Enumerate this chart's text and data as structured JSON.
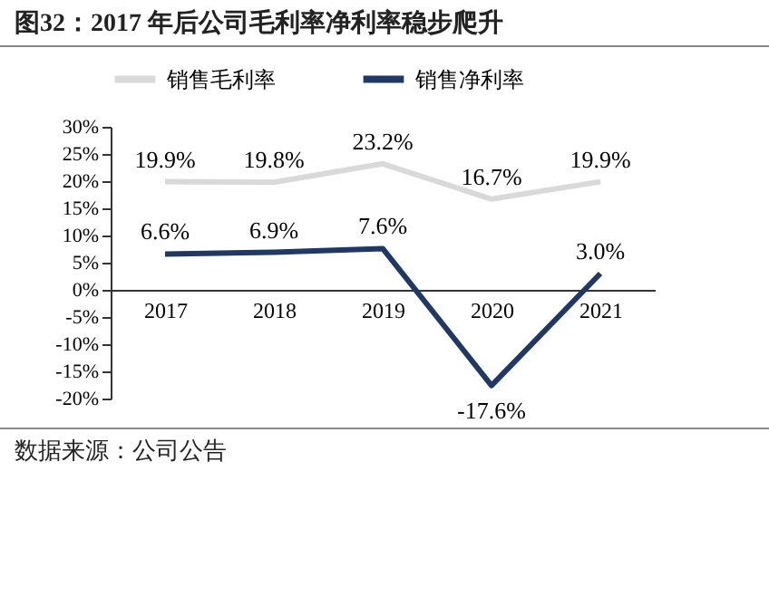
{
  "chart_data": {
    "type": "line",
    "title": "图32：2017 年后公司毛利率净利率稳步爬升",
    "annotations": [
      "数据来源：公司公告"
    ],
    "categories": [
      "2017",
      "2018",
      "2019",
      "2020",
      "2021"
    ],
    "series": [
      {
        "name": "销售毛利率",
        "color": "#d9d9d9",
        "values": [
          19.9,
          19.8,
          23.2,
          16.7,
          19.9
        ],
        "value_labels": [
          "19.9%",
          "19.8%",
          "23.2%",
          "16.7%",
          "19.9%"
        ]
      },
      {
        "name": "销售净利率",
        "color": "#1f3864",
        "values": [
          6.6,
          6.9,
          7.6,
          -17.6,
          3.0
        ],
        "value_labels": [
          "6.6%",
          "6.9%",
          "7.6%",
          "-17.6%",
          "3.0%"
        ]
      }
    ],
    "ylim": [
      -20,
      30
    ],
    "yticks": [
      {
        "value": -20,
        "label": "-20%"
      },
      {
        "value": -15,
        "label": "-15%"
      },
      {
        "value": -10,
        "label": "-10%"
      },
      {
        "value": -5,
        "label": "-5%"
      },
      {
        "value": 0,
        "label": "0%"
      },
      {
        "value": 5,
        "label": "5%"
      },
      {
        "value": 10,
        "label": "10%"
      },
      {
        "value": 15,
        "label": "15%"
      },
      {
        "value": 20,
        "label": "20%"
      },
      {
        "value": 25,
        "label": "25%"
      },
      {
        "value": 30,
        "label": "30%"
      }
    ],
    "legend": "top",
    "grid": false
  }
}
